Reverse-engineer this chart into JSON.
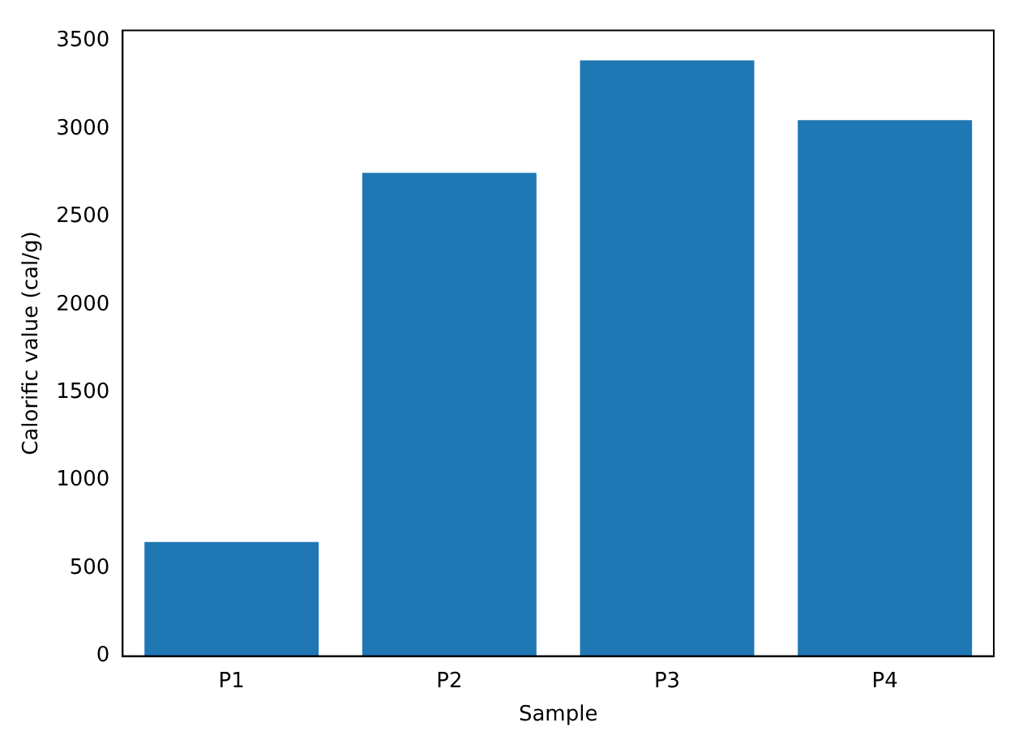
{
  "chart_data": {
    "type": "bar",
    "xlabel": "Sample",
    "ylabel": "Calorific value (cal/g)",
    "categories": [
      "P1",
      "P2",
      "P3",
      "P4"
    ],
    "values": [
      650,
      2750,
      3390,
      3050
    ],
    "color": "#1f77b4",
    "ylim": [
      0,
      3560
    ],
    "yticks": [
      0,
      500,
      1000,
      1500,
      2000,
      2500,
      3000,
      3500
    ],
    "grid": false,
    "legend": false
  }
}
